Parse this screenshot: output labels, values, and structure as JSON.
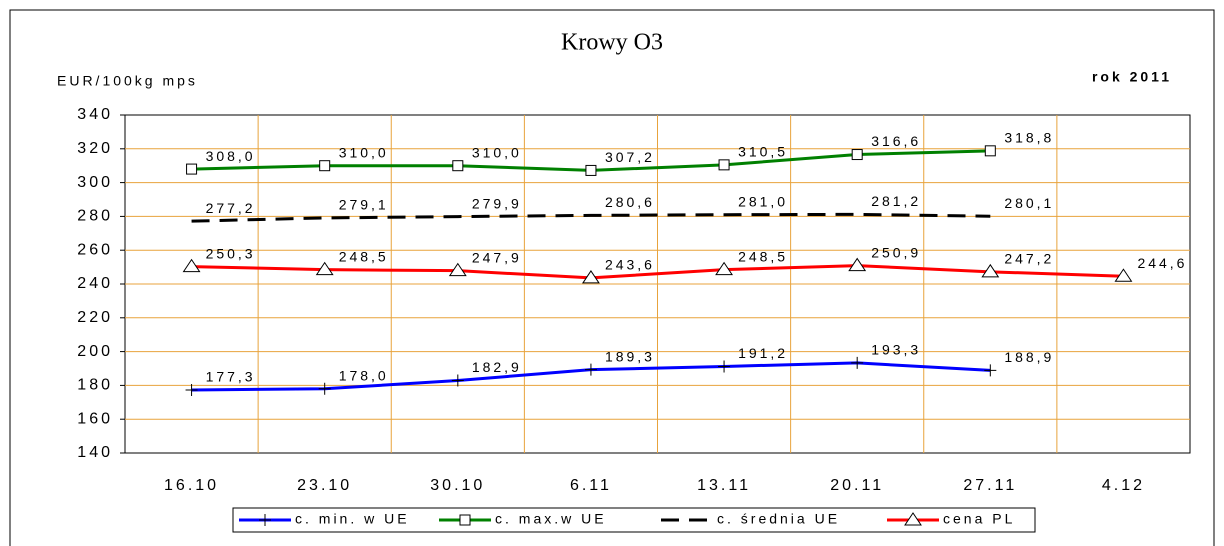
{
  "chart_data": {
    "type": "line",
    "title": "Krowy O3",
    "y_label": "EUR/100kg mps",
    "subtitle": "rok 2011",
    "categories": [
      "16.10",
      "23.10",
      "30.10",
      "6.11",
      "13.11",
      "20.11",
      "27.11",
      "4.12"
    ],
    "ylim": [
      140,
      340
    ],
    "yticks": [
      140,
      160,
      180,
      200,
      220,
      240,
      260,
      280,
      300,
      320,
      340
    ],
    "grid": true,
    "grid_color": "#e8a33c",
    "legend": "bottom",
    "series": [
      {
        "name": "c. min. w UE",
        "color": "#0000ff",
        "marker": "plus",
        "values": [
          177.3,
          178.0,
          182.9,
          189.3,
          191.2,
          193.3,
          188.9,
          null
        ],
        "value_labels": [
          "177,3",
          "178,0",
          "182,9",
          "189,3",
          "191,2",
          "193,3",
          "188,9",
          null
        ]
      },
      {
        "name": "c. max.w UE",
        "color": "#008000",
        "marker": "square",
        "values": [
          308.0,
          310.0,
          310.0,
          307.2,
          310.5,
          316.6,
          318.8,
          null
        ],
        "value_labels": [
          "308,0",
          "310,0",
          "310,0",
          "307,2",
          "310,5",
          "316,6",
          "318,8",
          null
        ]
      },
      {
        "name": "c. średnia UE",
        "color": "#000000",
        "marker": "none",
        "dashed": true,
        "values": [
          277.2,
          279.1,
          279.9,
          280.6,
          281.0,
          281.2,
          280.1,
          null
        ],
        "value_labels": [
          "277,2",
          "279,1",
          "279,9",
          "280,6",
          "281,0",
          "281,2",
          "280,1",
          null
        ]
      },
      {
        "name": "cena PL",
        "color": "#ff0000",
        "marker": "triangle",
        "values": [
          250.3,
          248.5,
          247.9,
          243.6,
          248.5,
          250.9,
          247.2,
          244.6
        ],
        "value_labels": [
          "250,3",
          "248,5",
          "247,9",
          "243,6",
          "248,5",
          "250,9",
          "247,2",
          "244,6"
        ]
      }
    ]
  }
}
